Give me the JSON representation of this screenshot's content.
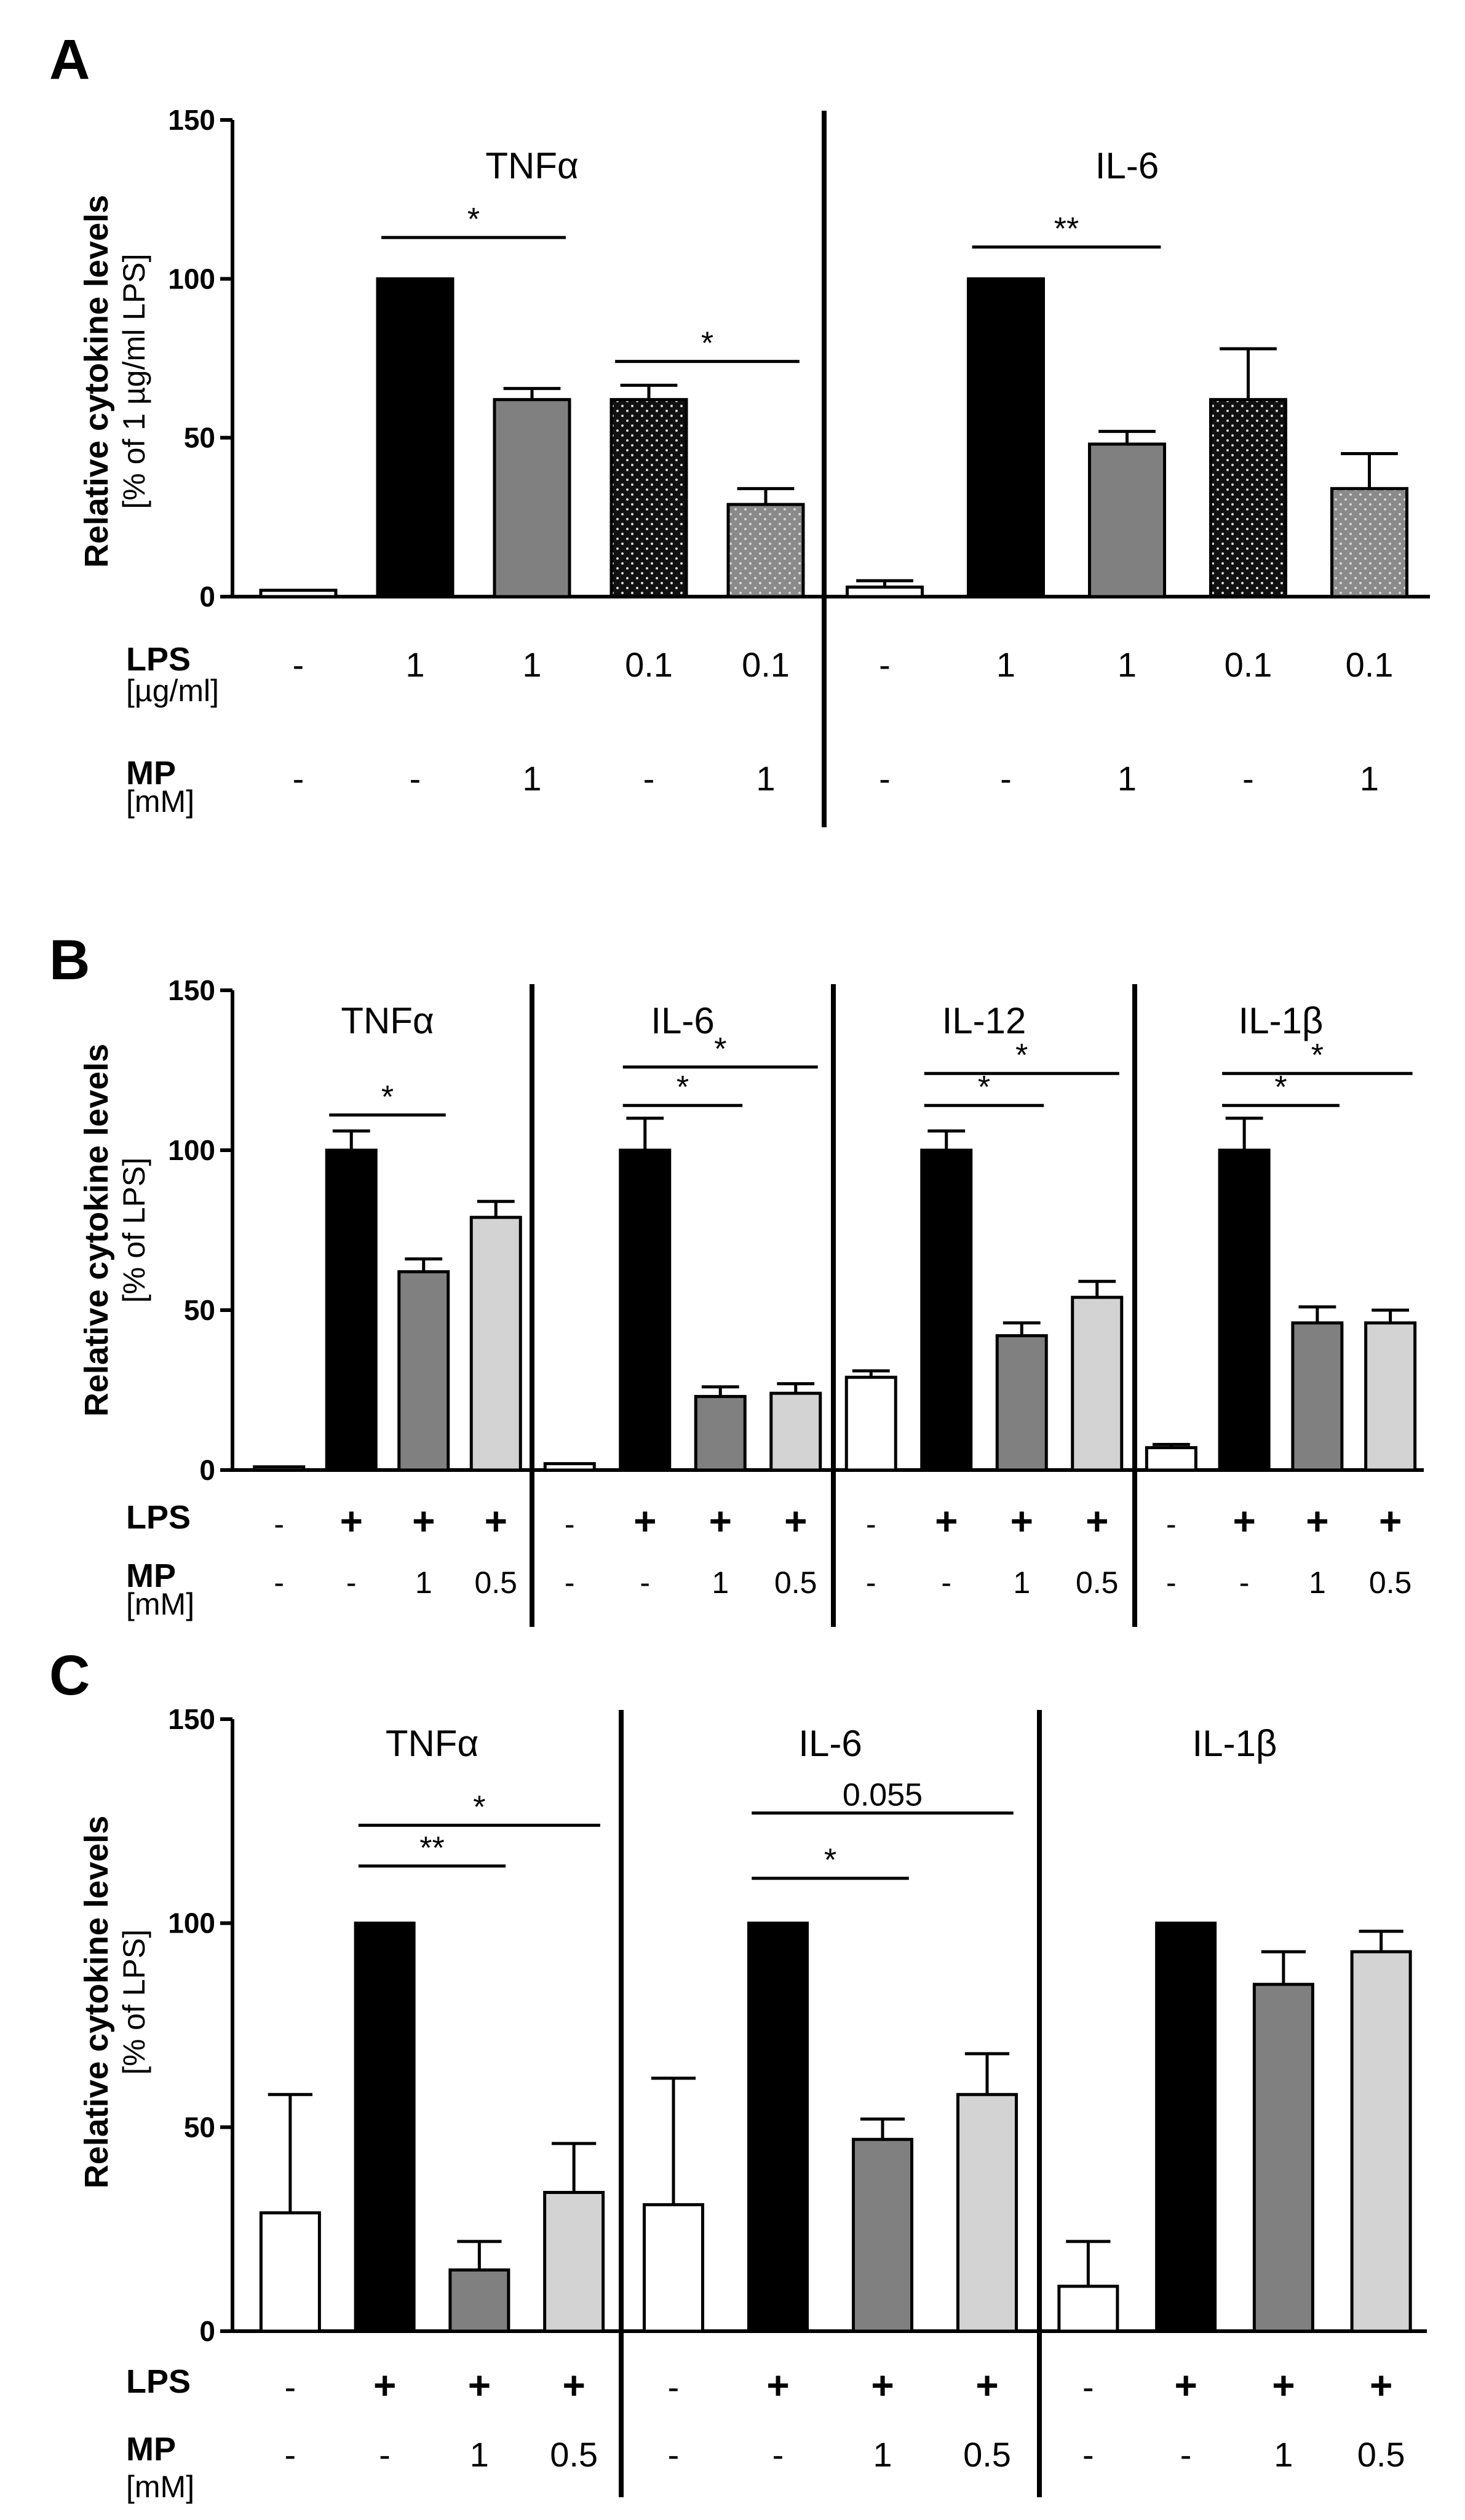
{
  "chart_data": [
    {
      "type": "bar",
      "panel": "A",
      "ylabel": "Relative cytokine levels",
      "ylabel_sub": "[% of 1 µg/ml LPS]",
      "ylim": [
        0,
        150
      ],
      "yticks": [
        "0",
        "50",
        "100",
        "150"
      ],
      "row_labels": [
        {
          "label": "LPS",
          "sub": "[µg/ml]"
        },
        {
          "label": "MP",
          "sub": "[mM]"
        }
      ],
      "groups": [
        {
          "name": "TNFα",
          "bars": [
            {
              "value": 2,
              "err": 0,
              "fill": "white",
              "lps": "-",
              "mp": "-"
            },
            {
              "value": 100,
              "err": 0,
              "fill": "black",
              "lps": "1",
              "mp": "-"
            },
            {
              "value": 62,
              "err": 3.5,
              "fill": "gray",
              "lps": "1",
              "mp": "1"
            },
            {
              "value": 62,
              "err": 4.5,
              "fill": "dots-dark",
              "lps": "0.1",
              "mp": "-"
            },
            {
              "value": 29,
              "err": 5,
              "fill": "dots-light",
              "lps": "0.1",
              "mp": "1"
            }
          ],
          "sig": [
            {
              "from": 1,
              "to": 2,
              "label": "*",
              "y": 113
            },
            {
              "from": 3,
              "to": 4,
              "label": "*",
              "y": 74
            }
          ]
        },
        {
          "name": "IL-6",
          "bars": [
            {
              "value": 3,
              "err": 2,
              "fill": "white",
              "lps": "-",
              "mp": "-"
            },
            {
              "value": 100,
              "err": 0,
              "fill": "black",
              "lps": "1",
              "mp": "-"
            },
            {
              "value": 48,
              "err": 4,
              "fill": "gray",
              "lps": "1",
              "mp": "1"
            },
            {
              "value": 62,
              "err": 16,
              "fill": "dots-dark",
              "lps": "0.1",
              "mp": "-"
            },
            {
              "value": 34,
              "err": 11,
              "fill": "dots-light",
              "lps": "0.1",
              "mp": "1"
            }
          ],
          "sig": [
            {
              "from": 1,
              "to": 2,
              "label": "**",
              "y": 110
            }
          ]
        }
      ]
    },
    {
      "type": "bar",
      "panel": "B",
      "ylabel": "Relative cytokine levels",
      "ylabel_sub": "[% of LPS]",
      "ylim": [
        0,
        150
      ],
      "yticks": [
        "0",
        "50",
        "100",
        "150"
      ],
      "row_labels": [
        {
          "label": "LPS",
          "sub": ""
        },
        {
          "label": "MP",
          "sub": "[mM]"
        }
      ],
      "groups": [
        {
          "name": "TNFα",
          "bars": [
            {
              "value": 1,
              "err": 0,
              "fill": "white",
              "lps": "-",
              "mp": "-"
            },
            {
              "value": 100,
              "err": 6,
              "fill": "black",
              "lps": "+",
              "mp": "-"
            },
            {
              "value": 62,
              "err": 4,
              "fill": "gray",
              "lps": "+",
              "mp": "1"
            },
            {
              "value": 79,
              "err": 5,
              "fill": "light",
              "lps": "+",
              "mp": "0.5"
            }
          ],
          "sig": [
            {
              "from": 1,
              "to": 2,
              "label": "*",
              "y": 111
            }
          ]
        },
        {
          "name": "IL-6",
          "bars": [
            {
              "value": 2,
              "err": 0,
              "fill": "white",
              "lps": "-",
              "mp": "-"
            },
            {
              "value": 100,
              "err": 10,
              "fill": "black",
              "lps": "+",
              "mp": "-"
            },
            {
              "value": 23,
              "err": 3,
              "fill": "gray",
              "lps": "+",
              "mp": "1"
            },
            {
              "value": 24,
              "err": 3,
              "fill": "light",
              "lps": "+",
              "mp": "0.5"
            }
          ],
          "sig": [
            {
              "from": 1,
              "to": 2,
              "label": "*",
              "y": 114
            },
            {
              "from": 1,
              "to": 3,
              "label": "*",
              "y": 126
            }
          ]
        },
        {
          "name": "IL-12",
          "bars": [
            {
              "value": 29,
              "err": 2,
              "fill": "white",
              "lps": "-",
              "mp": "-"
            },
            {
              "value": 100,
              "err": 6,
              "fill": "black",
              "lps": "+",
              "mp": "-"
            },
            {
              "value": 42,
              "err": 4,
              "fill": "gray",
              "lps": "+",
              "mp": "1"
            },
            {
              "value": 54,
              "err": 5,
              "fill": "light",
              "lps": "+",
              "mp": "0.5"
            }
          ],
          "sig": [
            {
              "from": 1,
              "to": 2,
              "label": "*",
              "y": 114
            },
            {
              "from": 1,
              "to": 3,
              "label": "*",
              "y": 124
            }
          ]
        },
        {
          "name": "IL-1β",
          "bars": [
            {
              "value": 7,
              "err": 1,
              "fill": "white",
              "lps": "-",
              "mp": "-"
            },
            {
              "value": 100,
              "err": 10,
              "fill": "black",
              "lps": "+",
              "mp": "-"
            },
            {
              "value": 46,
              "err": 5,
              "fill": "gray",
              "lps": "+",
              "mp": "1"
            },
            {
              "value": 46,
              "err": 4,
              "fill": "light",
              "lps": "+",
              "mp": "0.5"
            }
          ],
          "sig": [
            {
              "from": 1,
              "to": 2,
              "label": "*",
              "y": 114
            },
            {
              "from": 1,
              "to": 3,
              "label": "*",
              "y": 124
            }
          ]
        }
      ]
    },
    {
      "type": "bar",
      "panel": "C",
      "ylabel": "Relative cytokine levels",
      "ylabel_sub": "[% of LPS]",
      "ylim": [
        0,
        150
      ],
      "yticks": [
        "0",
        "50",
        "100",
        "150"
      ],
      "row_labels": [
        {
          "label": "LPS",
          "sub": ""
        },
        {
          "label": "MP",
          "sub": "[mM]"
        }
      ],
      "groups": [
        {
          "name": "TNFα",
          "bars": [
            {
              "value": 29,
              "err": 29,
              "fill": "white",
              "lps": "-",
              "mp": "-"
            },
            {
              "value": 100,
              "err": 0,
              "fill": "black",
              "lps": "+",
              "mp": "-"
            },
            {
              "value": 15,
              "err": 7,
              "fill": "gray",
              "lps": "+",
              "mp": "1"
            },
            {
              "value": 34,
              "err": 12,
              "fill": "light",
              "lps": "+",
              "mp": "0.5"
            }
          ],
          "sig": [
            {
              "from": 1,
              "to": 2,
              "label": "**",
              "y": 114
            },
            {
              "from": 1,
              "to": 3,
              "label": "*",
              "y": 124
            }
          ]
        },
        {
          "name": "IL-6",
          "bars": [
            {
              "value": 31,
              "err": 31,
              "fill": "white",
              "lps": "-",
              "mp": "-"
            },
            {
              "value": 100,
              "err": 0,
              "fill": "black",
              "lps": "+",
              "mp": "-"
            },
            {
              "value": 47,
              "err": 5,
              "fill": "gray",
              "lps": "+",
              "mp": "1"
            },
            {
              "value": 58,
              "err": 10,
              "fill": "light",
              "lps": "+",
              "mp": "0.5"
            }
          ],
          "sig": [
            {
              "from": 1,
              "to": 2,
              "label": "*",
              "y": 111
            },
            {
              "from": 1,
              "to": 3,
              "label": "0.055",
              "y": 127
            }
          ]
        },
        {
          "name": "IL-1β",
          "bars": [
            {
              "value": 11,
              "err": 11,
              "fill": "white",
              "lps": "-",
              "mp": "-"
            },
            {
              "value": 100,
              "err": 0,
              "fill": "black",
              "lps": "+",
              "mp": "-"
            },
            {
              "value": 85,
              "err": 8,
              "fill": "gray",
              "lps": "+",
              "mp": "1"
            },
            {
              "value": 93,
              "err": 5,
              "fill": "light",
              "lps": "+",
              "mp": "0.5"
            }
          ],
          "sig": []
        }
      ]
    }
  ]
}
